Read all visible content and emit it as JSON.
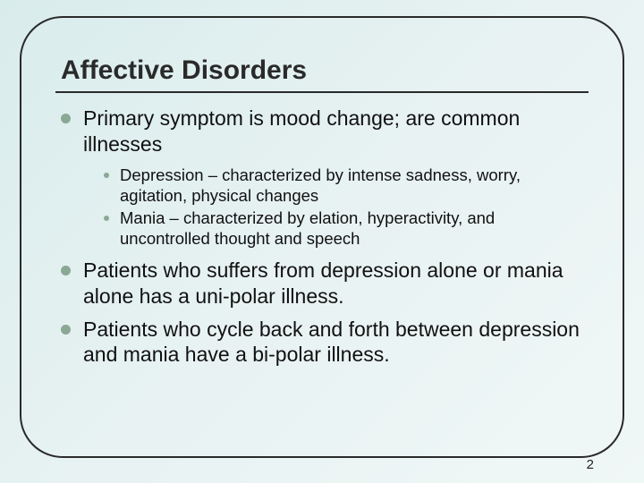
{
  "slide": {
    "title": "Affective Disorders",
    "title_fontsize": 30,
    "title_color": "#2a2a2a",
    "background_gradient": [
      "#d9ecec",
      "#e8f2f2",
      "#f0f7f7"
    ],
    "frame_border_color": "#2a2a2a",
    "frame_border_radius": 48,
    "bullets": [
      {
        "text": "Primary symptom is mood change;  are common illnesses",
        "sub": [
          {
            "text": "Depression – characterized by intense sadness, worry, agitation, physical changes"
          },
          {
            "text": "Mania – characterized by elation, hyperactivity, and uncontrolled thought and speech"
          }
        ]
      },
      {
        "text": "Patients who suffers from depression alone or mania alone has a uni-polar illness.",
        "sub": []
      },
      {
        "text": "Patients who cycle back and forth between depression and mania have a bi-polar illness.",
        "sub": []
      }
    ],
    "main_bullet_color": "#8aa894",
    "sub_bullet_color": "#8aa894",
    "main_fontsize": 23,
    "sub_fontsize": 18.5,
    "page_number": "2",
    "page_number_fontsize": 15
  }
}
